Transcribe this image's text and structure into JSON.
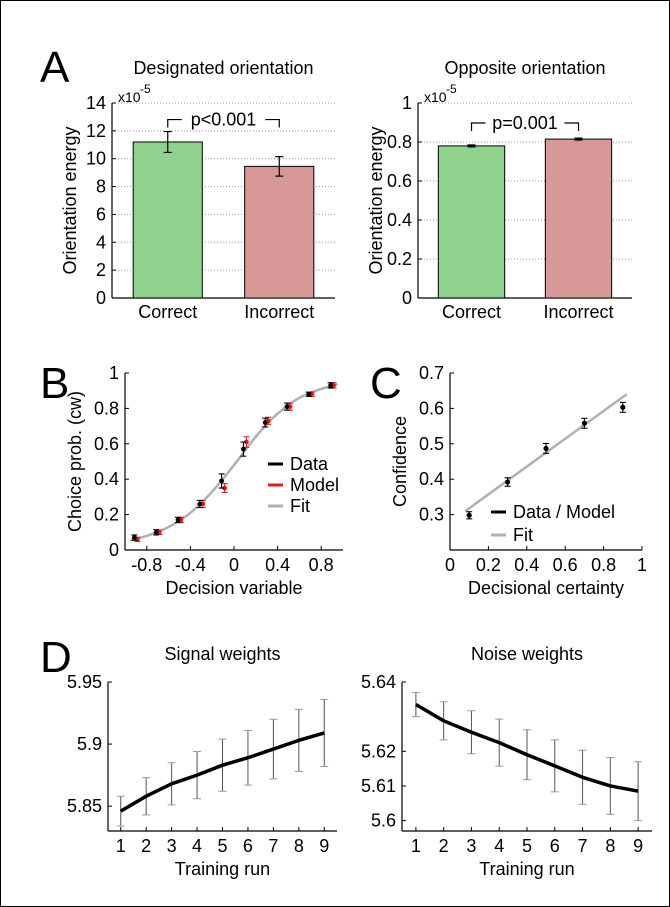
{
  "panel_letters": [
    "A",
    "B",
    "C",
    "D"
  ],
  "chart_data": [
    {
      "panel": "A",
      "type": "bar",
      "title": "Designated orientation",
      "ylabel": "Orientation energy",
      "y_multiplier": "x10",
      "y_exponent": "-5",
      "ylim": [
        0,
        14
      ],
      "yticks": [
        0,
        2,
        4,
        6,
        8,
        10,
        12,
        14
      ],
      "categories": [
        "Correct",
        "Incorrect"
      ],
      "values": [
        11.2,
        9.45
      ],
      "errors": [
        0.75,
        0.7
      ],
      "bar_colors": [
        "#8ed28e",
        "#d89898"
      ],
      "annotation": "p<0.001",
      "grid": "horizontal dotted"
    },
    {
      "panel": "A",
      "type": "bar",
      "title": "Opposite orientation",
      "ylabel": "Orientation energy",
      "y_multiplier": "x10",
      "y_exponent": "-5",
      "ylim": [
        0,
        1
      ],
      "yticks": [
        0,
        0.2,
        0.4,
        0.6,
        0.8,
        1
      ],
      "categories": [
        "Correct",
        "Incorrect"
      ],
      "values": [
        0.78,
        0.815
      ],
      "errors": [
        0.005,
        0.005
      ],
      "bar_colors": [
        "#8ed28e",
        "#d89898"
      ],
      "annotation": "p=0.001",
      "grid": "horizontal dotted"
    },
    {
      "panel": "B",
      "type": "line",
      "xlabel": "Decision variable",
      "ylabel": "Choice prob. (cw)",
      "xlim": [
        -1,
        1
      ],
      "ylim": [
        0,
        1
      ],
      "xticks": [
        -0.8,
        -0.4,
        0,
        0.4,
        0.8
      ],
      "xtick_labels": [
        "-0.8",
        "-0.4",
        "0",
        "0.4",
        "0.8"
      ],
      "yticks": [
        0,
        0.2,
        0.4,
        0.6,
        0.8,
        1
      ],
      "ytick_labels": [
        "0",
        "0.2",
        "0.4",
        "0.6",
        "0.8",
        "1"
      ],
      "series": [
        {
          "name": "Data",
          "color": "#000000",
          "x": [
            -0.9,
            -0.7,
            -0.5,
            -0.3,
            -0.1,
            0.1,
            0.3,
            0.5,
            0.7,
            0.9
          ],
          "y": [
            0.07,
            0.1,
            0.17,
            0.26,
            0.39,
            0.57,
            0.72,
            0.81,
            0.88,
            0.93
          ],
          "err": [
            0.015,
            0.015,
            0.015,
            0.02,
            0.04,
            0.04,
            0.025,
            0.02,
            0.012,
            0.015
          ]
        },
        {
          "name": "Model",
          "color": "#e02020",
          "x": [
            -0.9,
            -0.7,
            -0.5,
            -0.3,
            -0.1,
            0.1,
            0.3,
            0.5,
            0.7,
            0.9
          ],
          "y": [
            0.06,
            0.1,
            0.17,
            0.26,
            0.35,
            0.61,
            0.73,
            0.81,
            0.88,
            0.93
          ],
          "err": [
            0.012,
            0.012,
            0.015,
            0.02,
            0.025,
            0.03,
            0.02,
            0.02,
            0.012,
            0.015
          ]
        },
        {
          "name": "Fit",
          "color": "#b0b0b0",
          "x": [
            -0.95,
            -0.8,
            -0.6,
            -0.4,
            -0.2,
            0,
            0.2,
            0.4,
            0.6,
            0.8,
            0.95
          ],
          "y": [
            0.055,
            0.08,
            0.13,
            0.21,
            0.33,
            0.48,
            0.64,
            0.77,
            0.86,
            0.91,
            0.935
          ]
        }
      ]
    },
    {
      "panel": "C",
      "type": "line",
      "xlabel": "Decisional certainty",
      "ylabel": "Confidence",
      "xlim": [
        0,
        1
      ],
      "ylim": [
        0.2,
        0.7
      ],
      "xticks": [
        0,
        0.2,
        0.4,
        0.6,
        0.8,
        1
      ],
      "xtick_labels": [
        "0",
        "0.2",
        "0.4",
        "0.6",
        "0.8",
        "1"
      ],
      "yticks": [
        0.3,
        0.4,
        0.5,
        0.6,
        0.7
      ],
      "ytick_labels": [
        "0.3",
        "0.4",
        "0.5",
        "0.6",
        "0.7"
      ],
      "series": [
        {
          "name": "Data / Model",
          "color": "#000000",
          "x": [
            0.1,
            0.3,
            0.5,
            0.7,
            0.9
          ],
          "y": [
            0.298,
            0.392,
            0.487,
            0.558,
            0.603
          ],
          "err": [
            0.01,
            0.012,
            0.014,
            0.014,
            0.014
          ]
        },
        {
          "name": "Fit",
          "color": "#b0b0b0",
          "x": [
            0.08,
            0.92
          ],
          "y": [
            0.31,
            0.64
          ]
        }
      ]
    },
    {
      "panel": "D",
      "type": "line",
      "title": "Signal weights",
      "xlabel": "Training run",
      "xlim": [
        0.5,
        9.5
      ],
      "ylim": [
        5.83,
        5.95
      ],
      "xticks": [
        1,
        2,
        3,
        4,
        5,
        6,
        7,
        8,
        9
      ],
      "yticks": [
        5.85,
        5.9,
        5.95
      ],
      "ytick_labels": [
        "5.85",
        "5.9",
        "5.95"
      ],
      "series": [
        {
          "color": "#000000",
          "x": [
            1,
            2,
            3,
            4,
            5,
            6,
            7,
            8,
            9
          ],
          "y": [
            5.846,
            5.858,
            5.868,
            5.875,
            5.883,
            5.889,
            5.896,
            5.903,
            5.909
          ],
          "err": [
            0.012,
            0.015,
            0.017,
            0.019,
            0.021,
            0.022,
            0.024,
            0.025,
            0.027
          ]
        }
      ]
    },
    {
      "panel": "D",
      "type": "line",
      "title": "Noise weights",
      "xlabel": "Training run",
      "xlim": [
        0.5,
        9.5
      ],
      "ylim": [
        5.597,
        5.64
      ],
      "xticks": [
        1,
        2,
        3,
        4,
        5,
        6,
        7,
        8,
        9
      ],
      "yticks": [
        5.6,
        5.61,
        5.62,
        5.64
      ],
      "ytick_labels": [
        "5.6",
        "5.61",
        "5.62",
        "5.64"
      ],
      "series": [
        {
          "color": "#000000",
          "x": [
            1,
            2,
            3,
            4,
            5,
            6,
            7,
            8,
            9
          ],
          "y": [
            5.6335,
            5.6288,
            5.6255,
            5.6225,
            5.619,
            5.6158,
            5.6125,
            5.61,
            5.6085
          ],
          "err": [
            0.0035,
            0.0055,
            0.0062,
            0.0068,
            0.0072,
            0.0075,
            0.0078,
            0.0082,
            0.0085
          ]
        }
      ]
    }
  ]
}
